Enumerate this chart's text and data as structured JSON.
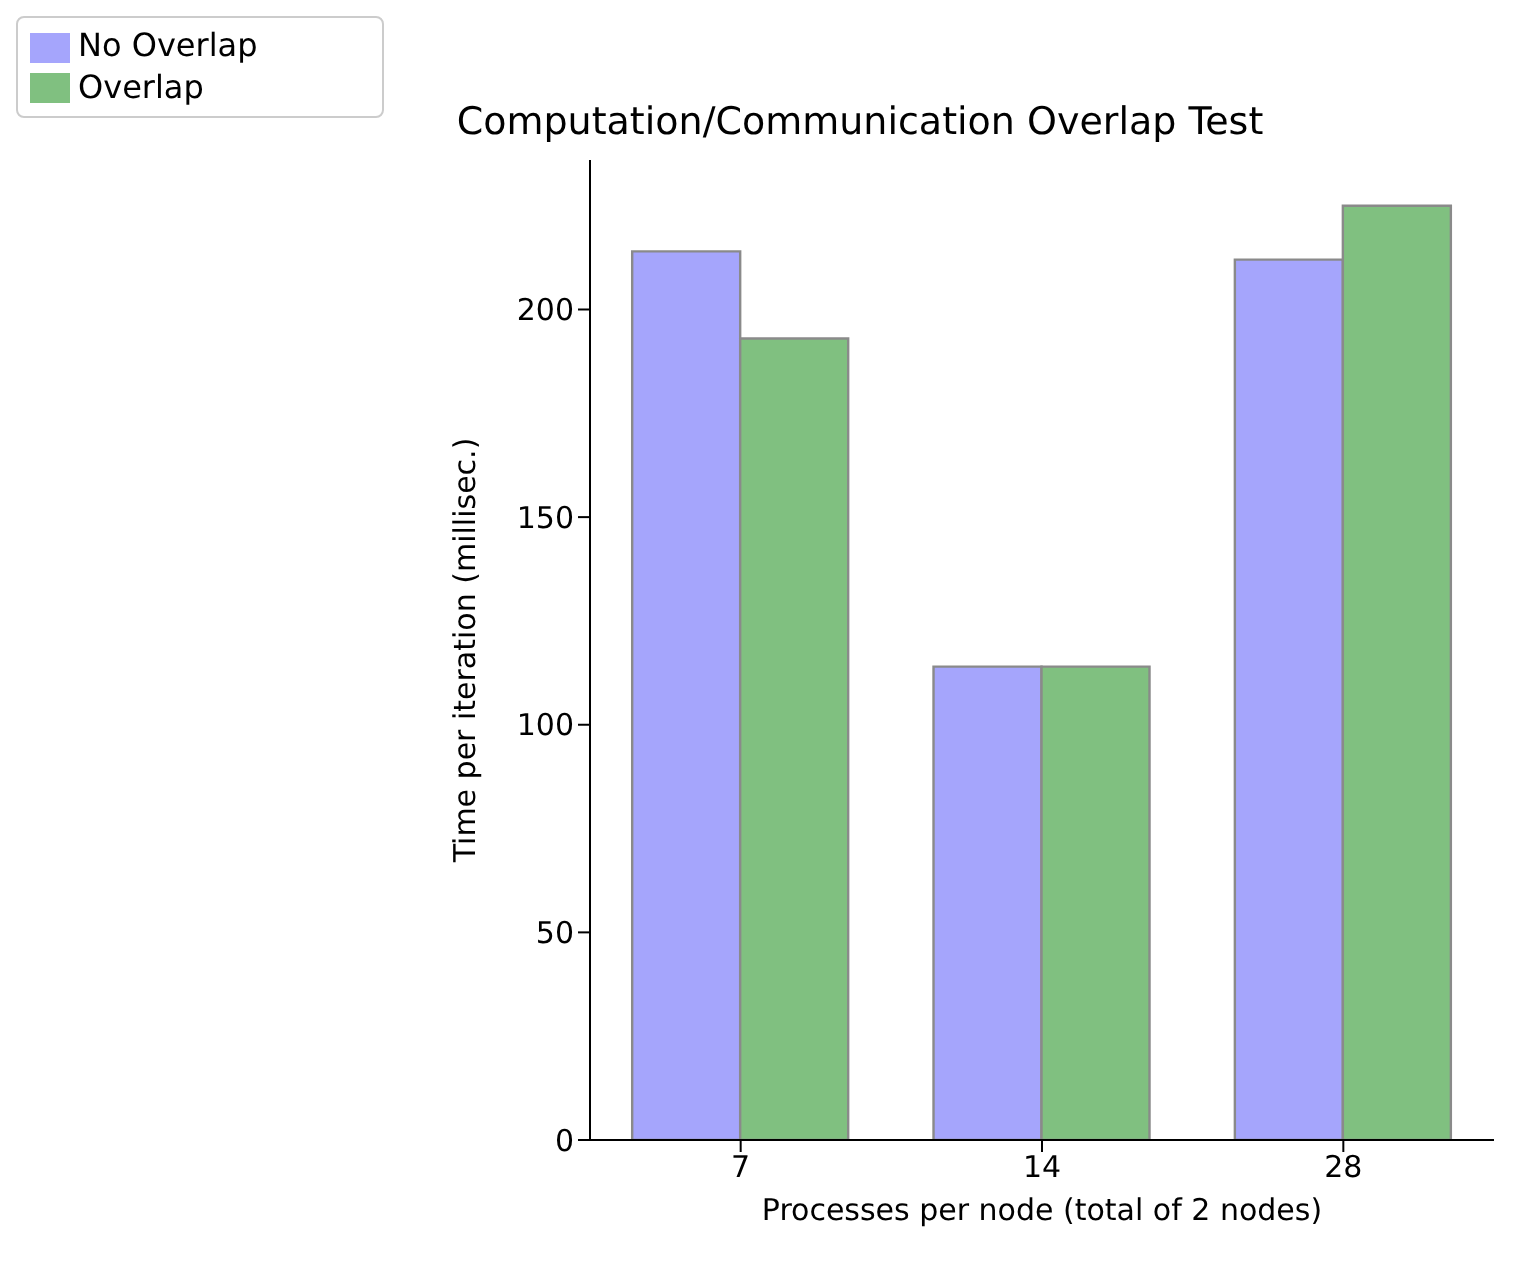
{
  "chart_data": {
    "type": "bar",
    "title": "Computation/Communication Overlap Test",
    "xlabel": "Processes per node (total of 2 nodes)",
    "ylabel": "Time per iteration (millisec.)",
    "categories": [
      "7",
      "14",
      "28"
    ],
    "series": [
      {
        "name": "No Overlap",
        "color": "#a5a5fc",
        "values": [
          214,
          114,
          212
        ]
      },
      {
        "name": "Overlap",
        "color": "#80c080",
        "values": [
          193,
          114,
          225
        ]
      }
    ],
    "ylim": [
      0,
      236
    ],
    "yticks": [
      0,
      50,
      100,
      150,
      200
    ],
    "grid": false,
    "legend": "top left"
  }
}
